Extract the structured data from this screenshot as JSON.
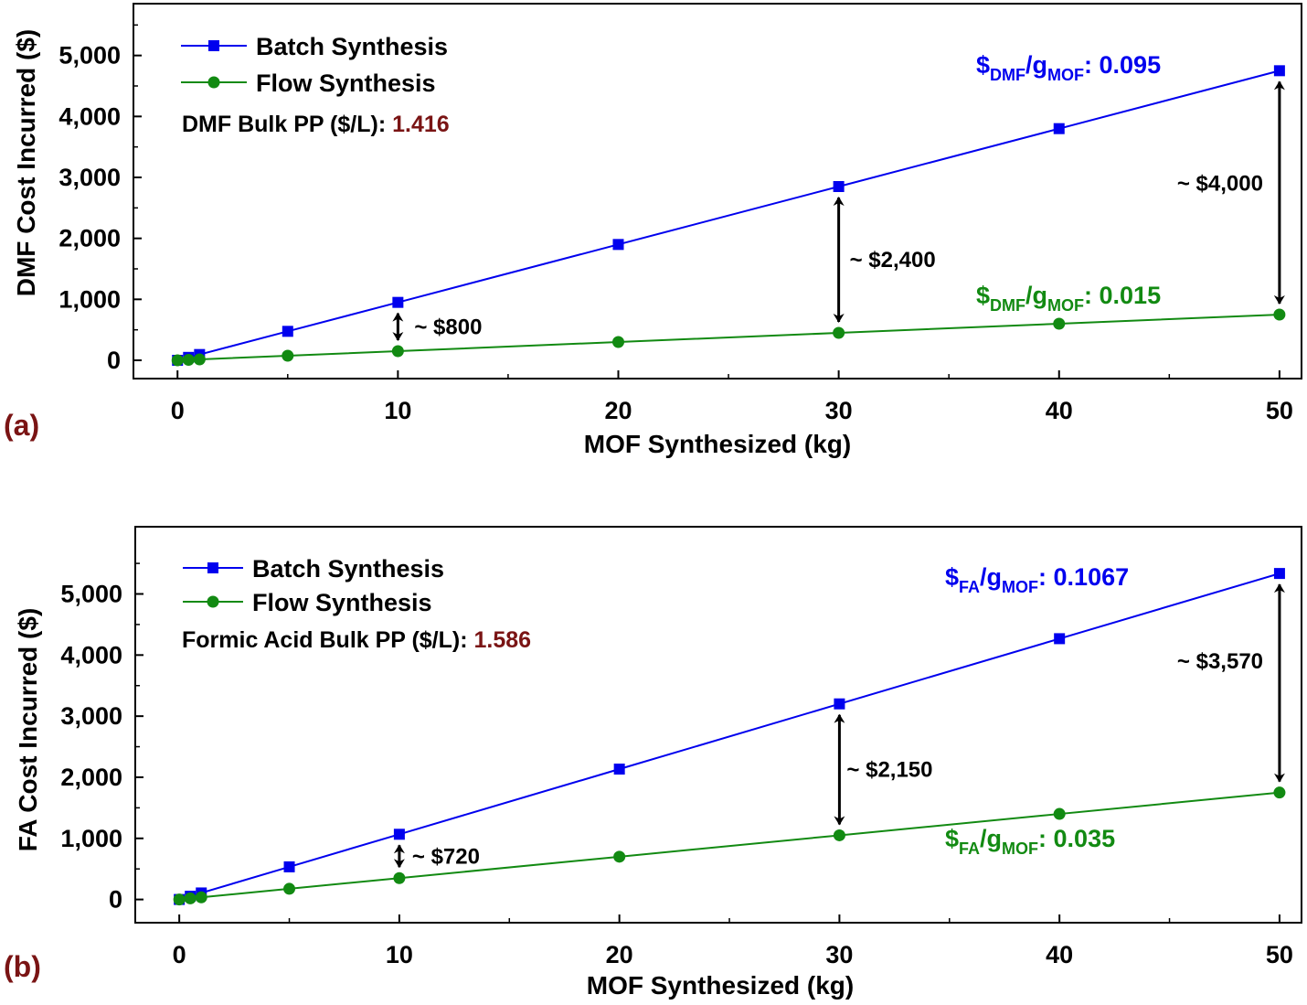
{
  "colors": {
    "batch": "#0000ee",
    "flow": "#128a12",
    "price": "#7a1414",
    "panel_label": "#7a1414",
    "arrow": "#000000"
  },
  "chart_data": [
    {
      "type": "line",
      "panel_label": "(a)",
      "xlabel": "MOF Synthesized (kg)",
      "ylabel": "DMF Cost Incurred ($)",
      "xlim": [
        -2,
        51
      ],
      "ylim": [
        -300,
        5850
      ],
      "x_ticks": [
        0,
        10,
        20,
        30,
        40,
        50
      ],
      "x_tick_labels": [
        "0",
        "10",
        "20",
        "30",
        "40",
        "50"
      ],
      "y_ticks": [
        0,
        1000,
        2000,
        3000,
        4000,
        5000
      ],
      "y_tick_labels": [
        "0",
        "1,000",
        "2,000",
        "3,000",
        "4,000",
        "5,000"
      ],
      "grid": false,
      "legend_position": "top-left",
      "series": [
        {
          "name": "Batch Synthesis",
          "marker": "square",
          "x": [
            0,
            0.5,
            1,
            5,
            10,
            20,
            30,
            40,
            50
          ],
          "y": [
            0,
            48,
            95,
            475,
            950,
            1900,
            2850,
            3800,
            4750
          ]
        },
        {
          "name": "Flow Synthesis",
          "marker": "circle",
          "x": [
            0,
            0.5,
            1,
            5,
            10,
            20,
            30,
            40,
            50
          ],
          "y": [
            0,
            8,
            15,
            75,
            150,
            300,
            450,
            600,
            750
          ]
        }
      ],
      "price_note": {
        "label": "DMF Bulk PP ($/L):",
        "value": "1.416"
      },
      "rate_batch": {
        "prefix": "$",
        "sub1": "DMF",
        "mid": "/g",
        "sub2": "MOF",
        "suffix": ": 0.095"
      },
      "rate_flow": {
        "prefix": "$",
        "sub1": "DMF",
        "mid": "/g",
        "sub2": "MOF",
        "suffix": ": 0.015"
      },
      "gaps": [
        {
          "x": 10,
          "label": "~ $800"
        },
        {
          "x": 30,
          "label": "~ $2,400"
        },
        {
          "x": 50,
          "label": "~ $4,000"
        }
      ]
    },
    {
      "type": "line",
      "panel_label": "(b)",
      "xlabel": "MOF Synthesized (kg)",
      "ylabel": "FA Cost Incurred ($)",
      "xlim": [
        -2,
        51
      ],
      "ylim": [
        -380,
        6100
      ],
      "x_ticks": [
        0,
        10,
        20,
        30,
        40,
        50
      ],
      "x_tick_labels": [
        "0",
        "10",
        "20",
        "30",
        "40",
        "50"
      ],
      "y_ticks": [
        0,
        1000,
        2000,
        3000,
        4000,
        5000
      ],
      "y_tick_labels": [
        "0",
        "1,000",
        "2,000",
        "3,000",
        "4,000",
        "5,000"
      ],
      "grid": false,
      "legend_position": "top-left",
      "series": [
        {
          "name": "Batch Synthesis",
          "marker": "square",
          "x": [
            0,
            0.5,
            1,
            5,
            10,
            20,
            30,
            40,
            50
          ],
          "y": [
            0,
            53,
            107,
            534,
            1067,
            2134,
            3201,
            4268,
            5335
          ]
        },
        {
          "name": "Flow Synthesis",
          "marker": "circle",
          "x": [
            0,
            0.5,
            1,
            5,
            10,
            20,
            30,
            40,
            50
          ],
          "y": [
            0,
            18,
            35,
            175,
            350,
            700,
            1050,
            1400,
            1750
          ]
        }
      ],
      "price_note": {
        "label": "Formic Acid Bulk PP ($/L):",
        "value": "1.586"
      },
      "rate_batch": {
        "prefix": "$",
        "sub1": "FA",
        "mid": "/g",
        "sub2": "MOF",
        "suffix": ": 0.1067"
      },
      "rate_flow": {
        "prefix": "$",
        "sub1": "FA",
        "mid": "/g",
        "sub2": "MOF",
        "suffix": ": 0.035"
      },
      "gaps": [
        {
          "x": 10,
          "label": "~ $720"
        },
        {
          "x": 30,
          "label": "~ $2,150"
        },
        {
          "x": 50,
          "label": "~ $3,570"
        }
      ]
    }
  ]
}
